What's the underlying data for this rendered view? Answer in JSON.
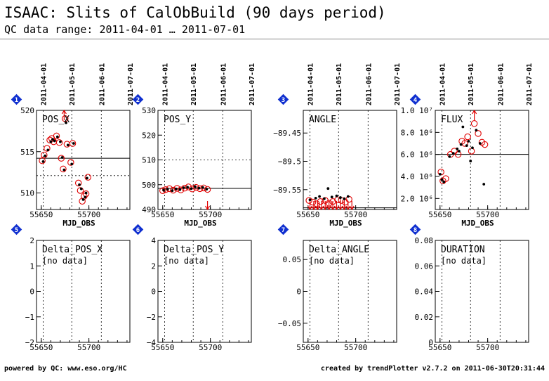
{
  "header": {
    "title": "ISAAC: Slits of CalObBuild (90 days period)",
    "subtitle": "QC data range: 2011-04-01 … 2011-07-01"
  },
  "footer": {
    "left": "powered by QC: www.eso.org/HC",
    "right": "created by trendPlotter v2.7.2 on 2011-06-30T20:31:44"
  },
  "colors": {
    "marker": "#e00000",
    "badge": "#1030d0",
    "points": "#000000"
  },
  "date_axis": {
    "ticks": [
      {
        "label": "2011-04-01",
        "mjd": 55652
      },
      {
        "label": "2011-05-01",
        "mjd": 55682
      },
      {
        "label": "2011-06-01",
        "mjd": 55713
      },
      {
        "label": "2011-07-01",
        "mjd": 55743
      }
    ]
  },
  "chart_data": [
    {
      "type": "scatter",
      "badge": "1",
      "title": "POS_X",
      "xlabel": "MJD_OBS",
      "xlim": [
        55645,
        55743
      ],
      "ylim": [
        508,
        520
      ],
      "x_ticks": [
        55650,
        55700
      ],
      "y_ticks": [
        {
          "v": 510,
          "label": "510"
        },
        {
          "v": 515,
          "label": "515"
        },
        {
          "v": 520,
          "label": "520"
        }
      ],
      "hline": 514.2,
      "hline_dotted": 512.1,
      "points_black": [
        [
          55652,
          513.8
        ],
        [
          55654,
          514.5
        ],
        [
          55657,
          515.2
        ],
        [
          55660,
          516.2
        ],
        [
          55662,
          516.5
        ],
        [
          55664,
          516.3
        ],
        [
          55667,
          516.8
        ],
        [
          55670,
          516.2
        ],
        [
          55672,
          514.3
        ],
        [
          55674,
          512.8
        ],
        [
          55676,
          518.5
        ],
        [
          55678,
          515.8
        ],
        [
          55682,
          513.5
        ],
        [
          55684,
          516.0
        ],
        [
          55690,
          511.0
        ],
        [
          55692,
          510.5
        ],
        [
          55694,
          509.2
        ],
        [
          55696,
          509.5
        ],
        [
          55697,
          510.0
        ],
        [
          55698,
          511.8
        ]
      ],
      "points_red": [
        [
          55651,
          513.9
        ],
        [
          55653,
          514.6
        ],
        [
          55656,
          515.4
        ],
        [
          55659,
          516.4
        ],
        [
          55661,
          516.6
        ],
        [
          55663,
          516.2
        ],
        [
          55666,
          516.9
        ],
        [
          55669,
          516.1
        ],
        [
          55671,
          514.2
        ],
        [
          55673,
          512.9
        ],
        [
          55675,
          519.0
        ],
        [
          55677,
          515.9
        ],
        [
          55681,
          513.7
        ],
        [
          55683,
          516.0
        ],
        [
          55689,
          511.2
        ],
        [
          55691,
          510.3
        ],
        [
          55693,
          509.0
        ],
        [
          55695,
          509.6
        ],
        [
          55697,
          509.9
        ],
        [
          55699,
          511.9
        ]
      ],
      "arrows_up": [
        55674
      ],
      "arrows_down": []
    },
    {
      "type": "scatter",
      "badge": "2",
      "title": "POS_Y",
      "xlabel": "MJD_OBS",
      "xlim": [
        55645,
        55743
      ],
      "ylim": [
        490,
        530
      ],
      "x_ticks": [
        55650,
        55700
      ],
      "y_ticks": [
        {
          "v": 490,
          "label": "490"
        },
        {
          "v": 500,
          "label": "500"
        },
        {
          "v": 510,
          "label": "510"
        },
        {
          "v": 520,
          "label": "520"
        },
        {
          "v": 530,
          "label": "530"
        }
      ],
      "hline": 498.5,
      "hline_dotted": 510,
      "points_black": [
        [
          55651,
          497.8
        ],
        [
          55655,
          498.2
        ],
        [
          55660,
          497.6
        ],
        [
          55664,
          498.3
        ],
        [
          55668,
          498.0
        ],
        [
          55672,
          498.8
        ],
        [
          55676,
          499.0
        ],
        [
          55680,
          498.4
        ],
        [
          55684,
          499.2
        ],
        [
          55688,
          498.6
        ],
        [
          55692,
          498.9
        ],
        [
          55696,
          498.2
        ]
      ],
      "points_red": [
        [
          55650,
          497.6
        ],
        [
          55653,
          498.0
        ],
        [
          55657,
          498.4
        ],
        [
          55661,
          497.8
        ],
        [
          55665,
          498.5
        ],
        [
          55669,
          497.9
        ],
        [
          55673,
          498.6
        ],
        [
          55677,
          499.1
        ],
        [
          55681,
          498.3
        ],
        [
          55685,
          498.9
        ],
        [
          55689,
          498.4
        ],
        [
          55693,
          498.7
        ],
        [
          55697,
          498.1
        ]
      ],
      "arrows_up": [],
      "arrows_down": [
        55697
      ]
    },
    {
      "type": "scatter",
      "badge": "3",
      "title": "ANGLE",
      "xlabel": "MJD_OBS",
      "xlim": [
        55645,
        55743
      ],
      "ylim": [
        -89.585,
        -89.41
      ],
      "x_ticks": [
        55650,
        55700
      ],
      "y_ticks": [
        {
          "v": -89.45,
          "label": "−89.45"
        },
        {
          "v": -89.5,
          "label": "−89.5"
        },
        {
          "v": -89.55,
          "label": "−89.55"
        }
      ],
      "hline": -89.582,
      "hline_dotted": null,
      "points_black": [
        [
          55652,
          -89.568
        ],
        [
          55658,
          -89.565
        ],
        [
          55662,
          -89.562
        ],
        [
          55667,
          -89.566
        ],
        [
          55671,
          -89.548
        ],
        [
          55675,
          -89.563
        ],
        [
          55680,
          -89.561
        ],
        [
          55684,
          -89.564
        ],
        [
          55688,
          -89.566
        ],
        [
          55692,
          -89.562
        ]
      ],
      "points_red": [
        [
          55651,
          -89.569
        ],
        [
          55655,
          -89.572
        ],
        [
          55659,
          -89.575
        ],
        [
          55663,
          -89.571
        ],
        [
          55668,
          -89.569
        ],
        [
          55672,
          -89.574
        ],
        [
          55676,
          -89.571
        ],
        [
          55681,
          -89.568
        ],
        [
          55685,
          -89.569
        ],
        [
          55689,
          -89.572
        ],
        [
          55693,
          -89.567
        ]
      ],
      "arrows_up": [],
      "arrows_down": [
        55652,
        55656,
        55660,
        55664,
        55668,
        55672,
        55676,
        55680,
        55684,
        55688,
        55692,
        55696
      ]
    },
    {
      "type": "scatter",
      "badge": "4",
      "title": "FLUX",
      "xlabel": "MJD_OBS",
      "xlim": [
        55645,
        55743
      ],
      "ylim": [
        1000000,
        10000000
      ],
      "x_ticks": [
        55650,
        55700
      ],
      "y_ticks": [
        {
          "v": 2000000,
          "label": "2.0 10⁶"
        },
        {
          "v": 4000000,
          "label": "4.0 10⁶"
        },
        {
          "v": 6000000,
          "label": "6.0 10⁶"
        },
        {
          "v": 8000000,
          "label": "8.0 10⁶"
        },
        {
          "v": 10000000,
          "label": "1.0 10⁷"
        }
      ],
      "hline": 6000000,
      "hline_dotted": null,
      "points_black": [
        [
          55650,
          4200000
        ],
        [
          55652,
          3700000
        ],
        [
          55654,
          3500000
        ],
        [
          55660,
          5800000
        ],
        [
          55664,
          6100000
        ],
        [
          55668,
          6500000
        ],
        [
          55670,
          6300000
        ],
        [
          55672,
          6900000
        ],
        [
          55674,
          8500000
        ],
        [
          55678,
          6800000
        ],
        [
          55680,
          7200000
        ],
        [
          55682,
          5400000
        ],
        [
          55684,
          6600000
        ],
        [
          55688,
          8200000
        ],
        [
          55692,
          7000000
        ],
        [
          55696,
          3300000
        ]
      ],
      "points_red": [
        [
          55651,
          4400000
        ],
        [
          55653,
          3600000
        ],
        [
          55656,
          3800000
        ],
        [
          55661,
          6000000
        ],
        [
          55665,
          6300000
        ],
        [
          55669,
          6000000
        ],
        [
          55673,
          7200000
        ],
        [
          55676,
          7000000
        ],
        [
          55679,
          7600000
        ],
        [
          55683,
          6300000
        ],
        [
          55686,
          8800000
        ],
        [
          55690,
          7900000
        ],
        [
          55694,
          7100000
        ],
        [
          55697,
          6900000
        ]
      ],
      "arrows_up": [
        55686
      ],
      "arrows_down": []
    },
    {
      "type": "scatter",
      "badge": "5",
      "title": "Delta_POS_X",
      "xlabel": "",
      "xlim": [
        55645,
        55743
      ],
      "ylim": [
        -2,
        2
      ],
      "x_ticks": [
        55650,
        55700
      ],
      "y_ticks": [
        {
          "v": -2,
          "label": "−2"
        },
        {
          "v": -1,
          "label": "−1"
        },
        {
          "v": 0,
          "label": "0"
        },
        {
          "v": 1,
          "label": "1"
        },
        {
          "v": 2,
          "label": "2"
        }
      ],
      "no_data": "[no data]"
    },
    {
      "type": "scatter",
      "badge": "6",
      "title": "Delta_POS_Y",
      "xlabel": "",
      "xlim": [
        55645,
        55743
      ],
      "ylim": [
        -4,
        4
      ],
      "x_ticks": [
        55650,
        55700
      ],
      "y_ticks": [
        {
          "v": -4,
          "label": "−4"
        },
        {
          "v": -2,
          "label": "−2"
        },
        {
          "v": 0,
          "label": "0"
        },
        {
          "v": 2,
          "label": "2"
        },
        {
          "v": 4,
          "label": "4"
        }
      ],
      "no_data": "[no data]"
    },
    {
      "type": "scatter",
      "badge": "7",
      "title": "Delta_ANGLE",
      "xlabel": "",
      "xlim": [
        55645,
        55743
      ],
      "ylim": [
        -0.08,
        0.08
      ],
      "x_ticks": [
        55650,
        55700
      ],
      "y_ticks": [
        {
          "v": -0.05,
          "label": "−0.05"
        },
        {
          "v": 0,
          "label": "0"
        },
        {
          "v": 0.05,
          "label": "0.05"
        }
      ],
      "no_data": "[no data]"
    },
    {
      "type": "scatter",
      "badge": "8",
      "title": "DURATION",
      "xlabel": "",
      "xlim": [
        55645,
        55743
      ],
      "ylim": [
        0,
        0.08
      ],
      "x_ticks": [
        55650,
        55700
      ],
      "y_ticks": [
        {
          "v": 0,
          "label": "0"
        },
        {
          "v": 0.02,
          "label": "0.02"
        },
        {
          "v": 0.04,
          "label": "0.04"
        },
        {
          "v": 0.06,
          "label": "0.06"
        },
        {
          "v": 0.08,
          "label": "0.08"
        }
      ],
      "no_data": "[no data]"
    }
  ]
}
